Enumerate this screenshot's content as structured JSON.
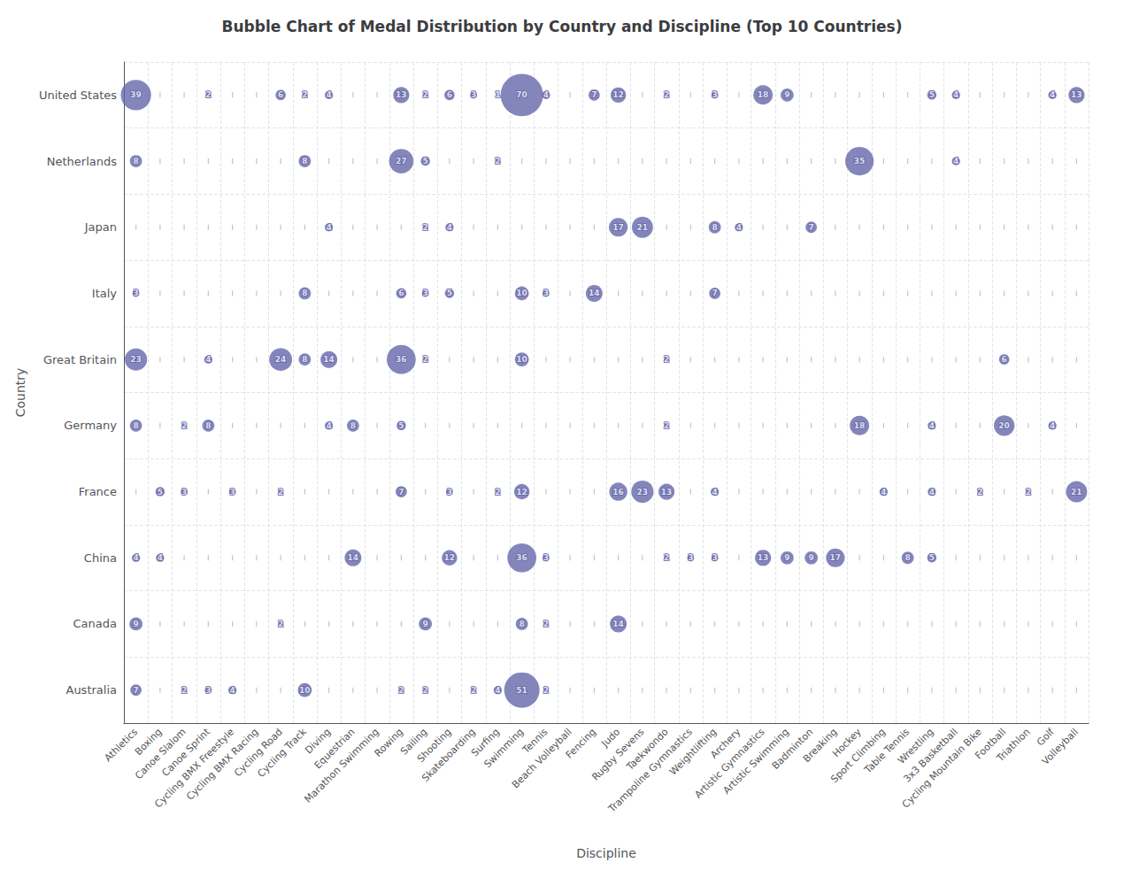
{
  "chart_data": {
    "type": "bubble",
    "title": "Bubble Chart of Medal Distribution by Country and Discipline (Top 10 Countries)",
    "xlabel": "Discipline",
    "ylabel": "Country",
    "categories": [
      "Athletics",
      "Boxing",
      "Canoe Slalom",
      "Canoe Sprint",
      "Cycling BMX Freestyle",
      "Cycling BMX Racing",
      "Cycling Road",
      "Cycling Track",
      "Diving",
      "Equestrian",
      "Marathon Swimming",
      "Rowing",
      "Sailing",
      "Shooting",
      "Skateboarding",
      "Surfing",
      "Swimming",
      "Tennis",
      "Beach Volleyball",
      "Fencing",
      "Judo",
      "Rugby Sevens",
      "Taekwondo",
      "Trampoline Gymnastics",
      "Weightlifting",
      "Archery",
      "Artistic Gymnastics",
      "Artistic Swimming",
      "Badminton",
      "Breaking",
      "Hockey",
      "Sport Climbing",
      "Table Tennis",
      "Wrestling",
      "3x3 Basketball",
      "Cycling Mountain Bike",
      "Football",
      "Triathlon",
      "Golf",
      "Volleyball"
    ],
    "y_categories": [
      "United States",
      "Netherlands",
      "Japan",
      "Italy",
      "Great Britain",
      "Germany",
      "France",
      "China",
      "Canada",
      "Australia"
    ],
    "color": "#6264a8",
    "data_labels": true,
    "grid": true,
    "points": [
      {
        "x": "Athletics",
        "y": "United States",
        "value": 39
      },
      {
        "x": "Canoe Sprint",
        "y": "United States",
        "value": 2
      },
      {
        "x": "Cycling Road",
        "y": "United States",
        "value": 6
      },
      {
        "x": "Cycling Track",
        "y": "United States",
        "value": 2
      },
      {
        "x": "Diving",
        "y": "United States",
        "value": 4
      },
      {
        "x": "Rowing",
        "y": "United States",
        "value": 13
      },
      {
        "x": "Sailing",
        "y": "United States",
        "value": 2
      },
      {
        "x": "Shooting",
        "y": "United States",
        "value": 6
      },
      {
        "x": "Skateboarding",
        "y": "United States",
        "value": 3
      },
      {
        "x": "Surfing",
        "y": "United States",
        "value": 1
      },
      {
        "x": "Swimming",
        "y": "United States",
        "value": 70
      },
      {
        "x": "Tennis",
        "y": "United States",
        "value": 4
      },
      {
        "x": "Fencing",
        "y": "United States",
        "value": 7
      },
      {
        "x": "Judo",
        "y": "United States",
        "value": 12
      },
      {
        "x": "Taekwondo",
        "y": "United States",
        "value": 2
      },
      {
        "x": "Weightlifting",
        "y": "United States",
        "value": 3
      },
      {
        "x": "Artistic Gymnastics",
        "y": "United States",
        "value": 18
      },
      {
        "x": "Artistic Swimming",
        "y": "United States",
        "value": 9
      },
      {
        "x": "Wrestling",
        "y": "United States",
        "value": 5
      },
      {
        "x": "3x3 Basketball",
        "y": "United States",
        "value": 4
      },
      {
        "x": "Golf",
        "y": "United States",
        "value": 4
      },
      {
        "x": "Volleyball",
        "y": "United States",
        "value": 13
      },
      {
        "x": "Athletics",
        "y": "Netherlands",
        "value": 8
      },
      {
        "x": "Cycling Track",
        "y": "Netherlands",
        "value": 8
      },
      {
        "x": "Rowing",
        "y": "Netherlands",
        "value": 27
      },
      {
        "x": "Sailing",
        "y": "Netherlands",
        "value": 5
      },
      {
        "x": "Surfing",
        "y": "Netherlands",
        "value": 2
      },
      {
        "x": "Hockey",
        "y": "Netherlands",
        "value": 35
      },
      {
        "x": "3x3 Basketball",
        "y": "Netherlands",
        "value": 4
      },
      {
        "x": "Diving",
        "y": "Japan",
        "value": 4
      },
      {
        "x": "Sailing",
        "y": "Japan",
        "value": 2
      },
      {
        "x": "Shooting",
        "y": "Japan",
        "value": 4
      },
      {
        "x": "Judo",
        "y": "Japan",
        "value": 17
      },
      {
        "x": "Rugby Sevens",
        "y": "Japan",
        "value": 21
      },
      {
        "x": "Weightlifting",
        "y": "Japan",
        "value": 8
      },
      {
        "x": "Archery",
        "y": "Japan",
        "value": 4
      },
      {
        "x": "Badminton",
        "y": "Japan",
        "value": 7
      },
      {
        "x": "Athletics",
        "y": "Italy",
        "value": 3
      },
      {
        "x": "Cycling Track",
        "y": "Italy",
        "value": 8
      },
      {
        "x": "Rowing",
        "y": "Italy",
        "value": 6
      },
      {
        "x": "Sailing",
        "y": "Italy",
        "value": 3
      },
      {
        "x": "Shooting",
        "y": "Italy",
        "value": 5
      },
      {
        "x": "Swimming",
        "y": "Italy",
        "value": 10
      },
      {
        "x": "Tennis",
        "y": "Italy",
        "value": 3
      },
      {
        "x": "Fencing",
        "y": "Italy",
        "value": 14
      },
      {
        "x": "Weightlifting",
        "y": "Italy",
        "value": 7
      },
      {
        "x": "Athletics",
        "y": "Great Britain",
        "value": 23
      },
      {
        "x": "Canoe Sprint",
        "y": "Great Britain",
        "value": 4
      },
      {
        "x": "Cycling Road",
        "y": "Great Britain",
        "value": 24
      },
      {
        "x": "Cycling Track",
        "y": "Great Britain",
        "value": 8
      },
      {
        "x": "Diving",
        "y": "Great Britain",
        "value": 14
      },
      {
        "x": "Rowing",
        "y": "Great Britain",
        "value": 36
      },
      {
        "x": "Sailing",
        "y": "Great Britain",
        "value": 2
      },
      {
        "x": "Swimming",
        "y": "Great Britain",
        "value": 10
      },
      {
        "x": "Taekwondo",
        "y": "Great Britain",
        "value": 2
      },
      {
        "x": "Football",
        "y": "Great Britain",
        "value": 6
      },
      {
        "x": "Athletics",
        "y": "Germany",
        "value": 8
      },
      {
        "x": "Canoe Slalom",
        "y": "Germany",
        "value": 2
      },
      {
        "x": "Canoe Sprint",
        "y": "Germany",
        "value": 8
      },
      {
        "x": "Diving",
        "y": "Germany",
        "value": 4
      },
      {
        "x": "Equestrian",
        "y": "Germany",
        "value": 8
      },
      {
        "x": "Rowing",
        "y": "Germany",
        "value": 5
      },
      {
        "x": "Taekwondo",
        "y": "Germany",
        "value": 2
      },
      {
        "x": "Hockey",
        "y": "Germany",
        "value": 18
      },
      {
        "x": "Wrestling",
        "y": "Germany",
        "value": 4
      },
      {
        "x": "Football",
        "y": "Germany",
        "value": 20
      },
      {
        "x": "Golf",
        "y": "Germany",
        "value": 4
      },
      {
        "x": "Boxing",
        "y": "France",
        "value": 5
      },
      {
        "x": "Canoe Slalom",
        "y": "France",
        "value": 3
      },
      {
        "x": "Cycling BMX Freestyle",
        "y": "France",
        "value": 3
      },
      {
        "x": "Cycling Road",
        "y": "France",
        "value": 2
      },
      {
        "x": "Rowing",
        "y": "France",
        "value": 7
      },
      {
        "x": "Shooting",
        "y": "France",
        "value": 3
      },
      {
        "x": "Surfing",
        "y": "France",
        "value": 2
      },
      {
        "x": "Swimming",
        "y": "France",
        "value": 12
      },
      {
        "x": "Judo",
        "y": "France",
        "value": 16
      },
      {
        "x": "Rugby Sevens",
        "y": "France",
        "value": 23
      },
      {
        "x": "Taekwondo",
        "y": "France",
        "value": 13
      },
      {
        "x": "Weightlifting",
        "y": "France",
        "value": 4
      },
      {
        "x": "Sport Climbing",
        "y": "France",
        "value": 4
      },
      {
        "x": "Wrestling",
        "y": "France",
        "value": 4
      },
      {
        "x": "Cycling Mountain Bike",
        "y": "France",
        "value": 2
      },
      {
        "x": "Volleyball",
        "y": "France",
        "value": 21
      },
      {
        "x": "Triathlon",
        "y": "France",
        "value": 2
      },
      {
        "x": "Athletics",
        "y": "China",
        "value": 4
      },
      {
        "x": "Boxing",
        "y": "China",
        "value": 4
      },
      {
        "x": "Equestrian",
        "y": "China",
        "value": 14
      },
      {
        "x": "Shooting",
        "y": "China",
        "value": 12
      },
      {
        "x": "Swimming",
        "y": "China",
        "value": 36
      },
      {
        "x": "Tennis",
        "y": "China",
        "value": 3
      },
      {
        "x": "Taekwondo",
        "y": "China",
        "value": 2
      },
      {
        "x": "Trampoline Gymnastics",
        "y": "China",
        "value": 3
      },
      {
        "x": "Weightlifting",
        "y": "China",
        "value": 3
      },
      {
        "x": "Artistic Gymnastics",
        "y": "China",
        "value": 13
      },
      {
        "x": "Artistic Swimming",
        "y": "China",
        "value": 9
      },
      {
        "x": "Badminton",
        "y": "China",
        "value": 9
      },
      {
        "x": "Breaking",
        "y": "China",
        "value": 17
      },
      {
        "x": "Table Tennis",
        "y": "China",
        "value": 8
      },
      {
        "x": "Wrestling",
        "y": "China",
        "value": 5
      },
      {
        "x": "Athletics",
        "y": "Canada",
        "value": 9
      },
      {
        "x": "Cycling Road",
        "y": "Canada",
        "value": 2
      },
      {
        "x": "Sailing",
        "y": "Canada",
        "value": 9
      },
      {
        "x": "Swimming",
        "y": "Canada",
        "value": 8
      },
      {
        "x": "Tennis",
        "y": "Canada",
        "value": 2
      },
      {
        "x": "Judo",
        "y": "Canada",
        "value": 14
      },
      {
        "x": "Athletics",
        "y": "Australia",
        "value": 7
      },
      {
        "x": "Canoe Slalom",
        "y": "Australia",
        "value": 2
      },
      {
        "x": "Canoe Sprint",
        "y": "Australia",
        "value": 3
      },
      {
        "x": "Cycling BMX Freestyle",
        "y": "Australia",
        "value": 4
      },
      {
        "x": "Cycling Track",
        "y": "Australia",
        "value": 10
      },
      {
        "x": "Rowing",
        "y": "Australia",
        "value": 2
      },
      {
        "x": "Sailing",
        "y": "Australia",
        "value": 2
      },
      {
        "x": "Skateboarding",
        "y": "Australia",
        "value": 2
      },
      {
        "x": "Surfing",
        "y": "Australia",
        "value": 4
      },
      {
        "x": "Swimming",
        "y": "Australia",
        "value": 51
      },
      {
        "x": "Tennis",
        "y": "Australia",
        "value": 2
      }
    ]
  }
}
